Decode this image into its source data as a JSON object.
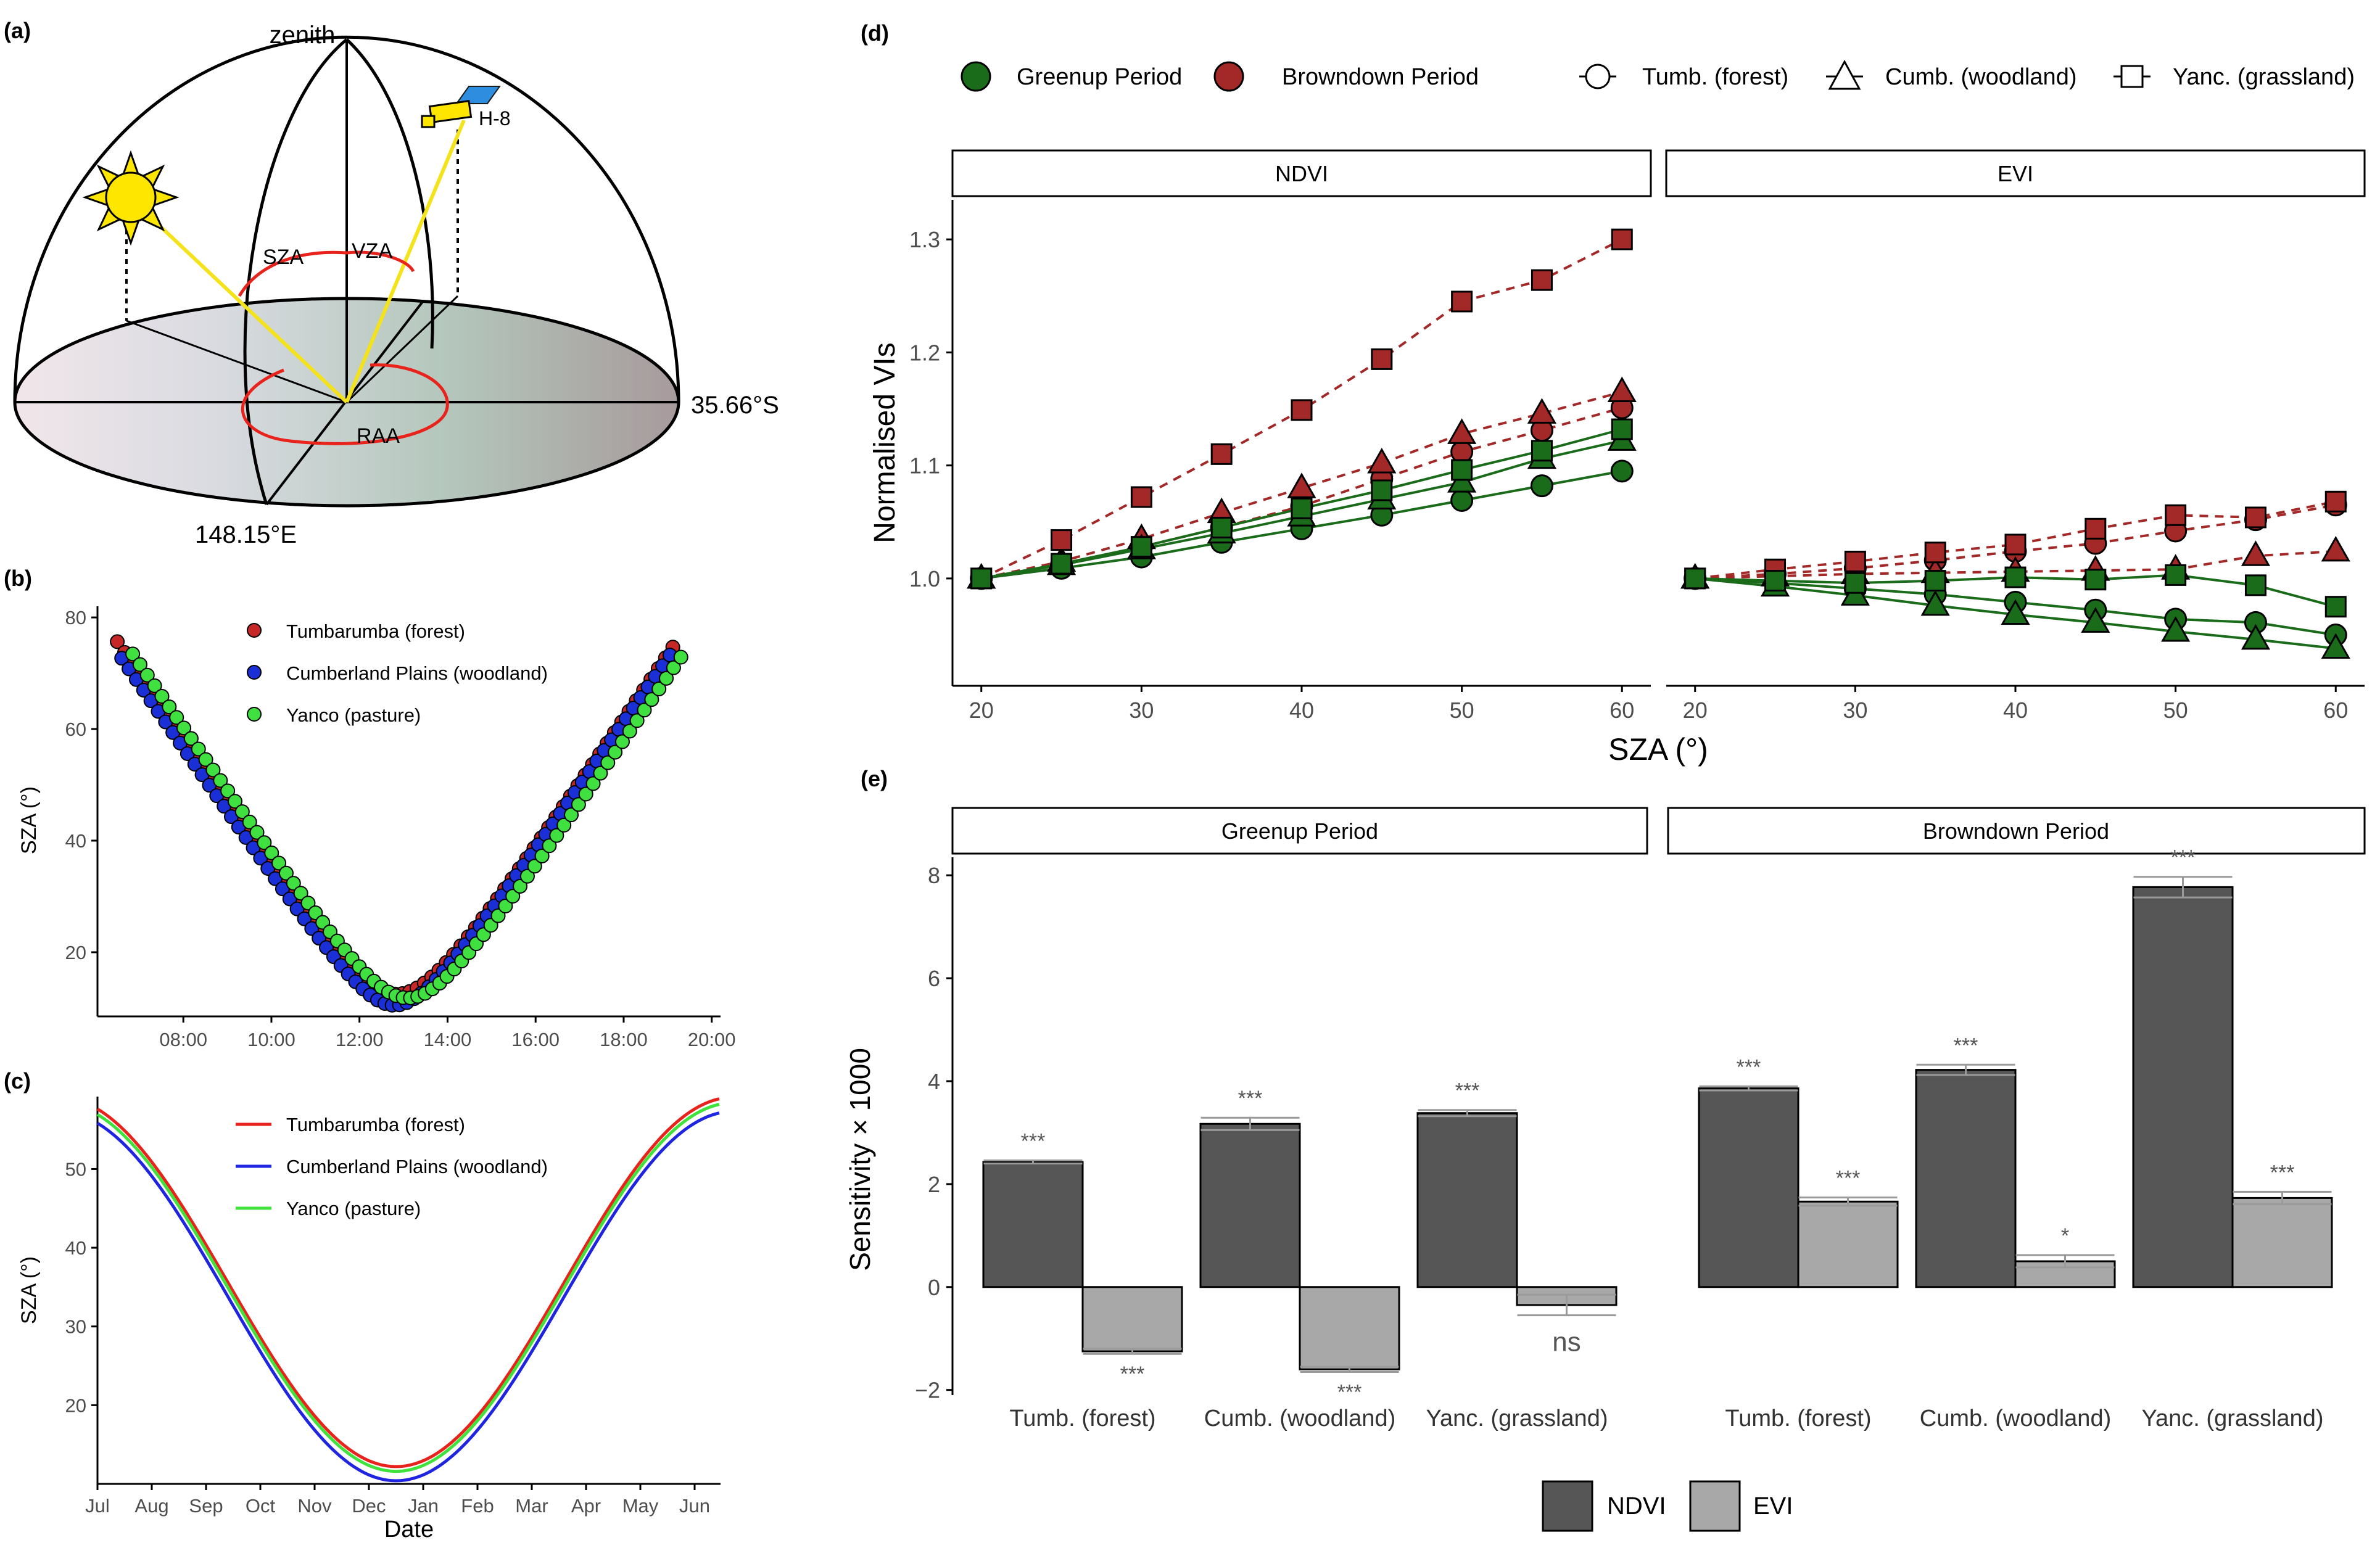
{
  "panels": {
    "a": {
      "tag": "(a)",
      "zenith": "zenith",
      "satellite": "H-8",
      "sza": "SZA",
      "vza": "VZA",
      "raa": "RAA",
      "lat": "35.66°S",
      "lon": "148.15°E",
      "colors": {
        "sun": "#ffe600",
        "ray": "#f4e21a",
        "angle": "#e8231c",
        "panel": "#2f8de0"
      }
    },
    "d_tag": "(d)",
    "e_tag": "(e)"
  },
  "chart_data": [
    {
      "id": "b",
      "tag": "(b)",
      "type": "scatter",
      "ylabel": "SZA (°)",
      "xlabel": "",
      "x_ticks": [
        "08:00",
        "10:00",
        "12:00",
        "14:00",
        "16:00",
        "18:00",
        "20:00"
      ],
      "x_tick_values": [
        8,
        10,
        12,
        14,
        16,
        18,
        20
      ],
      "y_ticks": [
        20,
        40,
        60,
        80
      ],
      "xlim": [
        6.05,
        20.2
      ],
      "ylim": [
        8.5,
        82
      ],
      "legend": [
        {
          "name": "Tumbarumba (forest)",
          "color": "#c62828"
        },
        {
          "name": "Cumberland Plains (woodland)",
          "color": "#1a2fd6"
        },
        {
          "name": "Yanco (pasture)",
          "color": "#3fe03f"
        }
      ],
      "series": [
        {
          "name": "Tumbarumba (forest)",
          "color": "#c62828",
          "start": 6.5,
          "end": 19.25,
          "noon": 12.85,
          "min": 12.5,
          "slope": 11.75
        },
        {
          "name": "Cumberland Plains (woodland)",
          "color": "#1a2fd6",
          "start": 6.6,
          "end": 19.05,
          "noon": 12.8,
          "min": 10.5,
          "slope": 11.6
        },
        {
          "name": "Yanco (pasture)",
          "color": "#3fe03f",
          "start": 6.85,
          "end": 19.35,
          "noon": 13.1,
          "min": 11.8,
          "slope": 11.6
        }
      ]
    },
    {
      "id": "c",
      "tag": "(c)",
      "type": "line",
      "ylabel": "SZA (°)",
      "xlabel": "Date",
      "x_ticks": [
        "Jul",
        "Aug",
        "Sep",
        "Oct",
        "Nov",
        "Dec",
        "Jan",
        "Feb",
        "Mar",
        "Apr",
        "May",
        "Jun"
      ],
      "y_ticks": [
        20,
        30,
        40,
        50
      ],
      "ylim": [
        10,
        59.2
      ],
      "legend": [
        {
          "name": "Tumbarumba (forest)",
          "color": "#e8231c"
        },
        {
          "name": "Cumberland Plains (woodland)",
          "color": "#1f24e0"
        },
        {
          "name": "Yanco (pasture)",
          "color": "#3ee23a"
        }
      ],
      "series": [
        {
          "name": "Tumbarumba (forest)",
          "color": "#e8231c",
          "max": 59.1,
          "min": 12.2
        },
        {
          "name": "Cumberland Plains (woodland)",
          "color": "#1f24e0",
          "max": 57.3,
          "min": 10.4
        },
        {
          "name": "Yanco (pasture)",
          "color": "#3ee23a",
          "max": 58.4,
          "min": 11.6
        }
      ]
    },
    {
      "id": "d",
      "type": "line",
      "ylabel": "Normalised VIs",
      "xlabel": "SZA (°)",
      "legend_period": [
        {
          "name": "Greenup Period",
          "color": "#1a6b1a"
        },
        {
          "name": "Browndown Period",
          "color": "#a32828"
        }
      ],
      "legend_site": [
        {
          "name": "Tumb. (forest)",
          "shape": "circle"
        },
        {
          "name": "Cumb. (woodland)",
          "shape": "triangle"
        },
        {
          "name": "Yanc. (grassland)",
          "shape": "square"
        }
      ],
      "x": [
        20,
        25,
        30,
        35,
        40,
        45,
        50,
        55,
        60
      ],
      "x_ticks": [
        20,
        30,
        40,
        50,
        60
      ],
      "y_ticks": [
        1.0,
        1.1,
        1.2,
        1.3
      ],
      "y_tick_labels": [
        "1.0",
        "1.1",
        "1.2",
        "1.3"
      ],
      "xlim": [
        18.2,
        61.8
      ],
      "ylim": [
        0.905,
        1.335
      ],
      "facets": [
        {
          "strip": "NDVI",
          "series": [
            {
              "name": "Tumb. (forest)",
              "period": "Browndown Period",
              "shape": "circle",
              "values": [
                1.0,
                1.012,
                1.028,
                1.045,
                1.064,
                1.088,
                1.112,
                1.131,
                1.151
              ]
            },
            {
              "name": "Cumb. (woodland)",
              "period": "Browndown Period",
              "shape": "triangle",
              "values": [
                1.0,
                1.015,
                1.035,
                1.058,
                1.08,
                1.102,
                1.128,
                1.146,
                1.165
              ]
            },
            {
              "name": "Yanc. (grassland)",
              "period": "Browndown Period",
              "shape": "square",
              "values": [
                1.0,
                1.034,
                1.072,
                1.11,
                1.149,
                1.194,
                1.245,
                1.264,
                1.3
              ]
            },
            {
              "name": "Tumb. (forest)",
              "period": "Greenup Period",
              "shape": "circle",
              "values": [
                1.0,
                1.009,
                1.019,
                1.032,
                1.044,
                1.056,
                1.069,
                1.082,
                1.095
              ]
            },
            {
              "name": "Cumb. (woodland)",
              "period": "Greenup Period",
              "shape": "triangle",
              "values": [
                1.0,
                1.012,
                1.026,
                1.04,
                1.055,
                1.07,
                1.085,
                1.106,
                1.122
              ]
            },
            {
              "name": "Yanc. (grassland)",
              "period": "Greenup Period",
              "shape": "square",
              "values": [
                1.0,
                1.013,
                1.028,
                1.045,
                1.062,
                1.078,
                1.096,
                1.113,
                1.132
              ]
            }
          ]
        },
        {
          "strip": "EVI",
          "series": [
            {
              "name": "Tumb. (forest)",
              "period": "Browndown Period",
              "shape": "circle",
              "values": [
                1.0,
                1.004,
                1.009,
                1.016,
                1.024,
                1.031,
                1.042,
                1.052,
                1.065
              ]
            },
            {
              "name": "Cumb. (woodland)",
              "period": "Browndown Period",
              "shape": "triangle",
              "values": [
                1.0,
                1.002,
                1.004,
                1.005,
                1.006,
                1.007,
                1.008,
                1.02,
                1.024
              ]
            },
            {
              "name": "Yanc. (grassland)",
              "period": "Browndown Period",
              "shape": "square",
              "values": [
                1.0,
                1.008,
                1.015,
                1.023,
                1.03,
                1.044,
                1.056,
                1.054,
                1.068
              ]
            },
            {
              "name": "Tumb. (forest)",
              "period": "Greenup Period",
              "shape": "circle",
              "values": [
                1.0,
                0.996,
                0.991,
                0.986,
                0.979,
                0.972,
                0.964,
                0.961,
                0.95
              ]
            },
            {
              "name": "Cumb. (woodland)",
              "period": "Greenup Period",
              "shape": "triangle",
              "values": [
                1.0,
                0.993,
                0.985,
                0.976,
                0.968,
                0.961,
                0.953,
                0.946,
                0.938
              ]
            },
            {
              "name": "Yanc. (grassland)",
              "period": "Greenup Period",
              "shape": "square",
              "values": [
                1.0,
                0.998,
                0.996,
                0.998,
                1.001,
                0.999,
                1.003,
                0.994,
                0.975
              ]
            }
          ]
        }
      ]
    },
    {
      "id": "e",
      "type": "bar",
      "ylabel": "Sensitivity × 1000",
      "categories": [
        "Tumb. (forest)",
        "Cumb. (woodland)",
        "Yanc. (grassland)"
      ],
      "y_ticks": [
        -2,
        0,
        2,
        4,
        6,
        8
      ],
      "y_tick_labels": [
        "−2",
        "0",
        "2",
        "4",
        "6",
        "8"
      ],
      "ylim": [
        -2.1,
        8.35
      ],
      "legend": [
        {
          "name": "NDVI",
          "color": "#565656"
        },
        {
          "name": "EVI",
          "color": "#a8a8a8"
        }
      ],
      "facets": [
        {
          "strip": "Greenup Period",
          "series": [
            {
              "name": "NDVI",
              "values": [
                2.43,
                3.17,
                3.38
              ],
              "errors": [
                0.03,
                0.12,
                0.06
              ],
              "sig": [
                "***",
                "***",
                "***"
              ]
            },
            {
              "name": "EVI",
              "values": [
                -1.25,
                -1.6,
                -0.35
              ],
              "errors": [
                0.05,
                0.05,
                0.2
              ],
              "sig": [
                "***",
                "***",
                "ns"
              ]
            }
          ]
        },
        {
          "strip": "Browndown Period",
          "series": [
            {
              "name": "NDVI",
              "values": [
                3.86,
                4.22,
                7.77
              ],
              "errors": [
                0.04,
                0.1,
                0.2
              ],
              "sig": [
                "***",
                "***",
                "***"
              ]
            },
            {
              "name": "EVI",
              "values": [
                1.66,
                0.5,
                1.73
              ],
              "errors": [
                0.08,
                0.12,
                0.12
              ],
              "sig": [
                "***",
                "*",
                "***"
              ]
            }
          ]
        }
      ]
    }
  ]
}
